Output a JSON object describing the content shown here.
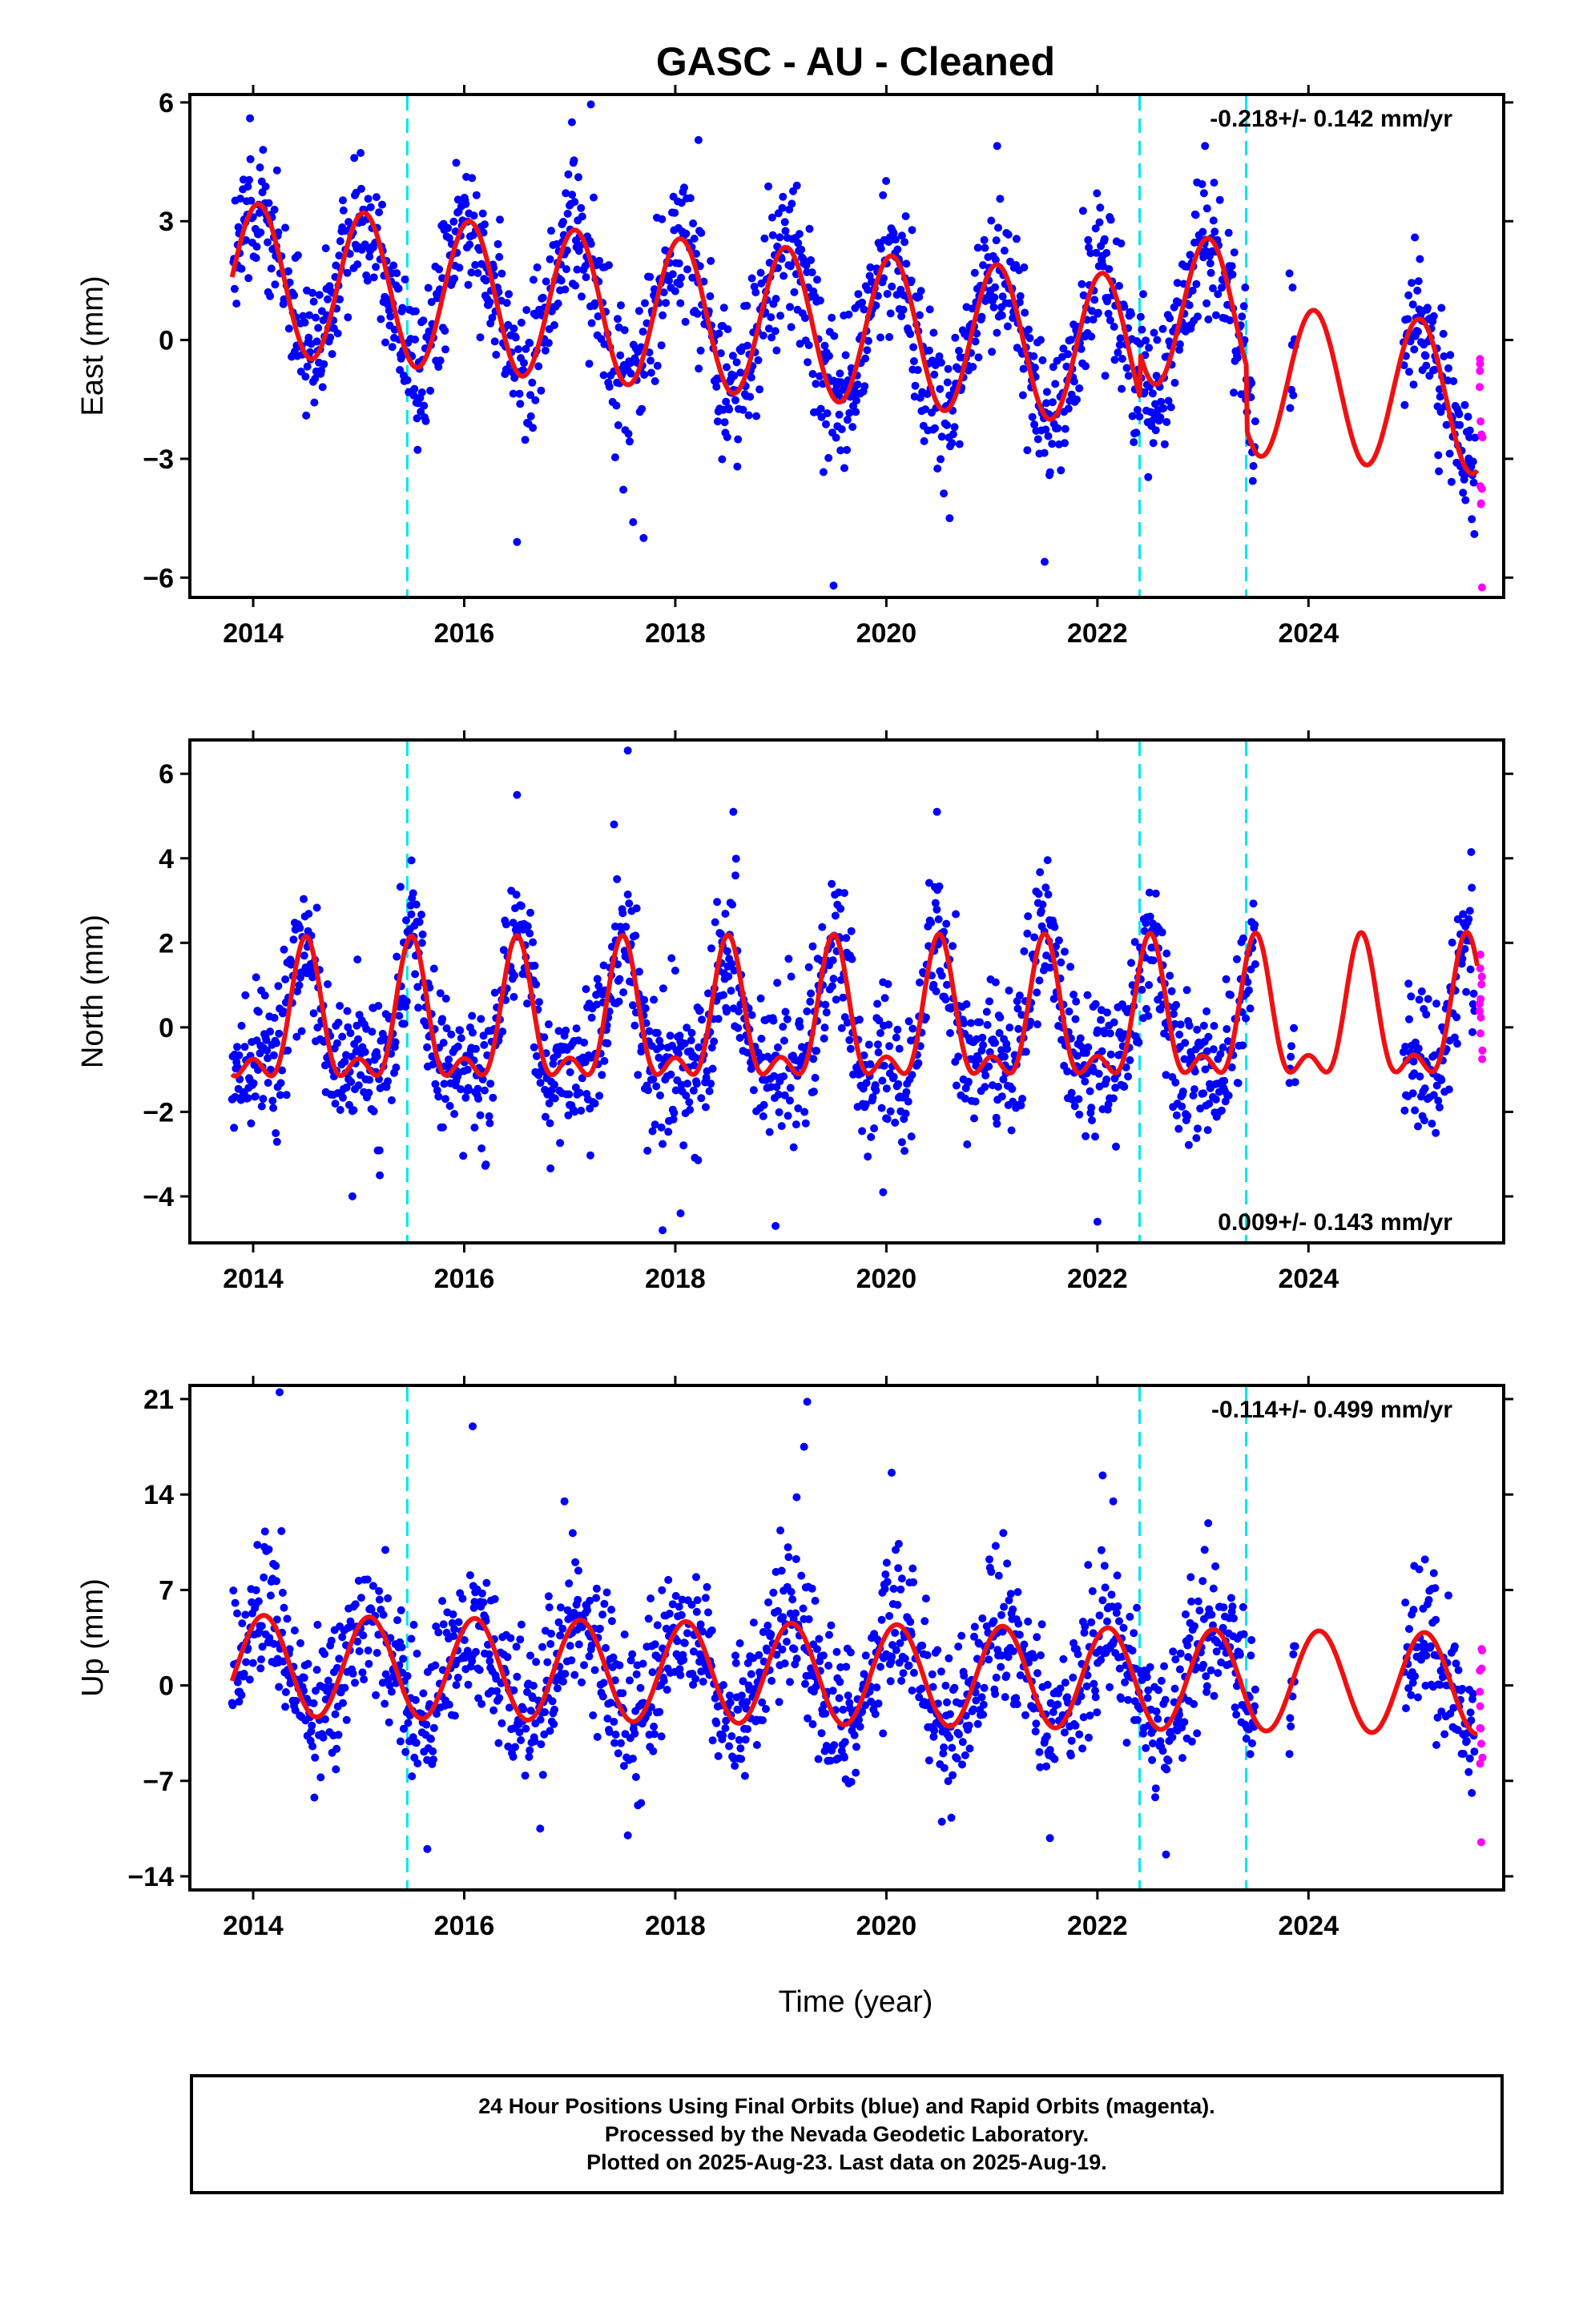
{
  "figure": {
    "title": "GASC  - AU - Cleaned",
    "xlabel": "Time (year)"
  },
  "colors": {
    "final_orbits": "#0000ff",
    "rapid_orbits": "#ff00ff",
    "model_fit": "#ee1111",
    "equipment_change": "#00e5ee",
    "frame": "#000000"
  },
  "caption": {
    "line1": "24 Hour Positions Using Final Orbits (blue) and Rapid Orbits (magenta).",
    "line2": "Processed by the Nevada Geodetic Laboratory.",
    "line3": "Plotted on 2025-Aug-23. Last data on 2025-Aug-19."
  },
  "chart_data": [
    {
      "type": "scatter",
      "component": "east",
      "ylabel": "East (mm)",
      "rate_label": "-0.218+/- 0.142 mm/yr",
      "rate_position": "top-right",
      "xlim": [
        2013.4,
        2025.85
      ],
      "ylim": [
        -6.5,
        6.2
      ],
      "xticks": [
        2014,
        2016,
        2018,
        2020,
        2022,
        2024
      ],
      "yticks": [
        -6,
        -3,
        0,
        3,
        6
      ],
      "ytick_labels": [
        "−6",
        "−3",
        "0",
        "3",
        "6"
      ],
      "offsets": [
        2015.46,
        2022.4,
        2023.41
      ],
      "rapid_start": 2025.6,
      "model": {
        "start": 2013.8,
        "end": 2025.6,
        "offset": 0.3,
        "trend": -0.218,
        "annual_amp": 1.9,
        "annual_phase_peak": 2014.05,
        "semiannual_amp": 0.0,
        "semiannual_phase_peak": 2014.3,
        "jumps": [
          0.0,
          1.1,
          -1.6
        ]
      },
      "data_coverage": [
        [
          2013.8,
          2023.5
        ],
        [
          2023.82,
          2023.88
        ],
        [
          2024.9,
          2025.58
        ]
      ],
      "noise_sd": 0.9,
      "outliers": [
        [
          2013.97,
          5.6
        ],
        [
          2017.2,
          5.95
        ],
        [
          2017.02,
          5.5
        ],
        [
          2018.22,
          5.05
        ],
        [
          2021.05,
          4.9
        ],
        [
          2023.02,
          4.9
        ],
        [
          2016.5,
          -5.1
        ],
        [
          2017.6,
          -4.6
        ],
        [
          2017.7,
          -5.0
        ],
        [
          2019.5,
          -6.2
        ],
        [
          2021.5,
          -5.6
        ],
        [
          2020.6,
          -4.5
        ]
      ]
    },
    {
      "type": "scatter",
      "component": "north",
      "ylabel": "North (mm)",
      "rate_label": "0.009+/- 0.143 mm/yr",
      "rate_position": "bottom-right",
      "xlim": [
        2013.4,
        2025.85
      ],
      "ylim": [
        -5.1,
        6.8
      ],
      "xticks": [
        2014,
        2016,
        2018,
        2020,
        2022,
        2024
      ],
      "yticks": [
        -4,
        -2,
        0,
        2,
        4,
        6
      ],
      "ytick_labels": [
        "−4",
        "−2",
        "0",
        "2",
        "4",
        "6"
      ],
      "offsets": [
        2015.46,
        2022.4,
        2023.41
      ],
      "rapid_start": 2025.6,
      "model": {
        "start": 2013.8,
        "end": 2025.6,
        "offset": 0.0,
        "trend": 0.009,
        "annual_amp": 1.45,
        "annual_phase_peak": 2014.5,
        "semiannual_amp": 0.75,
        "semiannual_phase_peak": 2014.5,
        "jumps": [
          0.0,
          0.0,
          0.0
        ]
      },
      "data_coverage": [
        [
          2013.8,
          2023.5
        ],
        [
          2023.82,
          2023.88
        ],
        [
          2024.9,
          2025.58
        ]
      ],
      "noise_sd": 0.85,
      "outliers": [
        [
          2017.55,
          6.55
        ],
        [
          2016.5,
          5.5
        ],
        [
          2020.48,
          5.1
        ],
        [
          2018.55,
          5.1
        ],
        [
          2017.42,
          4.8
        ],
        [
          2015.5,
          3.95
        ],
        [
          2014.94,
          -4.0
        ],
        [
          2015.2,
          -3.5
        ],
        [
          2017.88,
          -4.8
        ],
        [
          2018.05,
          -4.4
        ],
        [
          2018.95,
          -4.7
        ],
        [
          2019.97,
          -3.9
        ],
        [
          2022.0,
          -4.6
        ]
      ]
    },
    {
      "type": "scatter",
      "component": "up",
      "ylabel": "Up (mm)",
      "rate_label": "-0.114+/- 0.499 mm/yr",
      "rate_position": "top-right",
      "xlim": [
        2013.4,
        2025.85
      ],
      "ylim": [
        -15,
        22
      ],
      "xticks": [
        2014,
        2016,
        2018,
        2020,
        2022,
        2024
      ],
      "yticks": [
        -14,
        -7,
        0,
        7,
        14,
        21
      ],
      "ytick_labels": [
        "−14",
        "−7",
        "0",
        "7",
        "14",
        "21"
      ],
      "offsets": [
        2015.46,
        2022.4,
        2023.41
      ],
      "rapid_start": 2025.6,
      "model": {
        "start": 2013.8,
        "end": 2025.6,
        "offset": 0.8,
        "trend": -0.114,
        "annual_amp": 3.7,
        "annual_phase_peak": 2014.1,
        "semiannual_amp": 0.0,
        "semiannual_phase_peak": 2014.3,
        "jumps": [
          0.0,
          0.0,
          0.0
        ]
      },
      "data_coverage": [
        [
          2013.8,
          2023.5
        ],
        [
          2023.82,
          2023.88
        ],
        [
          2024.9,
          2025.58
        ]
      ],
      "noise_sd": 2.6,
      "outliers": [
        [
          2014.25,
          21.5
        ],
        [
          2016.08,
          19.0
        ],
        [
          2019.25,
          20.8
        ],
        [
          2019.22,
          17.5
        ],
        [
          2020.05,
          15.6
        ],
        [
          2022.05,
          15.4
        ],
        [
          2022.15,
          13.5
        ],
        [
          2016.95,
          13.5
        ],
        [
          2019.15,
          13.8
        ],
        [
          2023.05,
          11.9
        ],
        [
          2015.65,
          -12.0
        ],
        [
          2016.72,
          -10.5
        ],
        [
          2022.65,
          -12.4
        ],
        [
          2021.55,
          -11.2
        ],
        [
          2017.55,
          -11.0
        ]
      ]
    }
  ]
}
